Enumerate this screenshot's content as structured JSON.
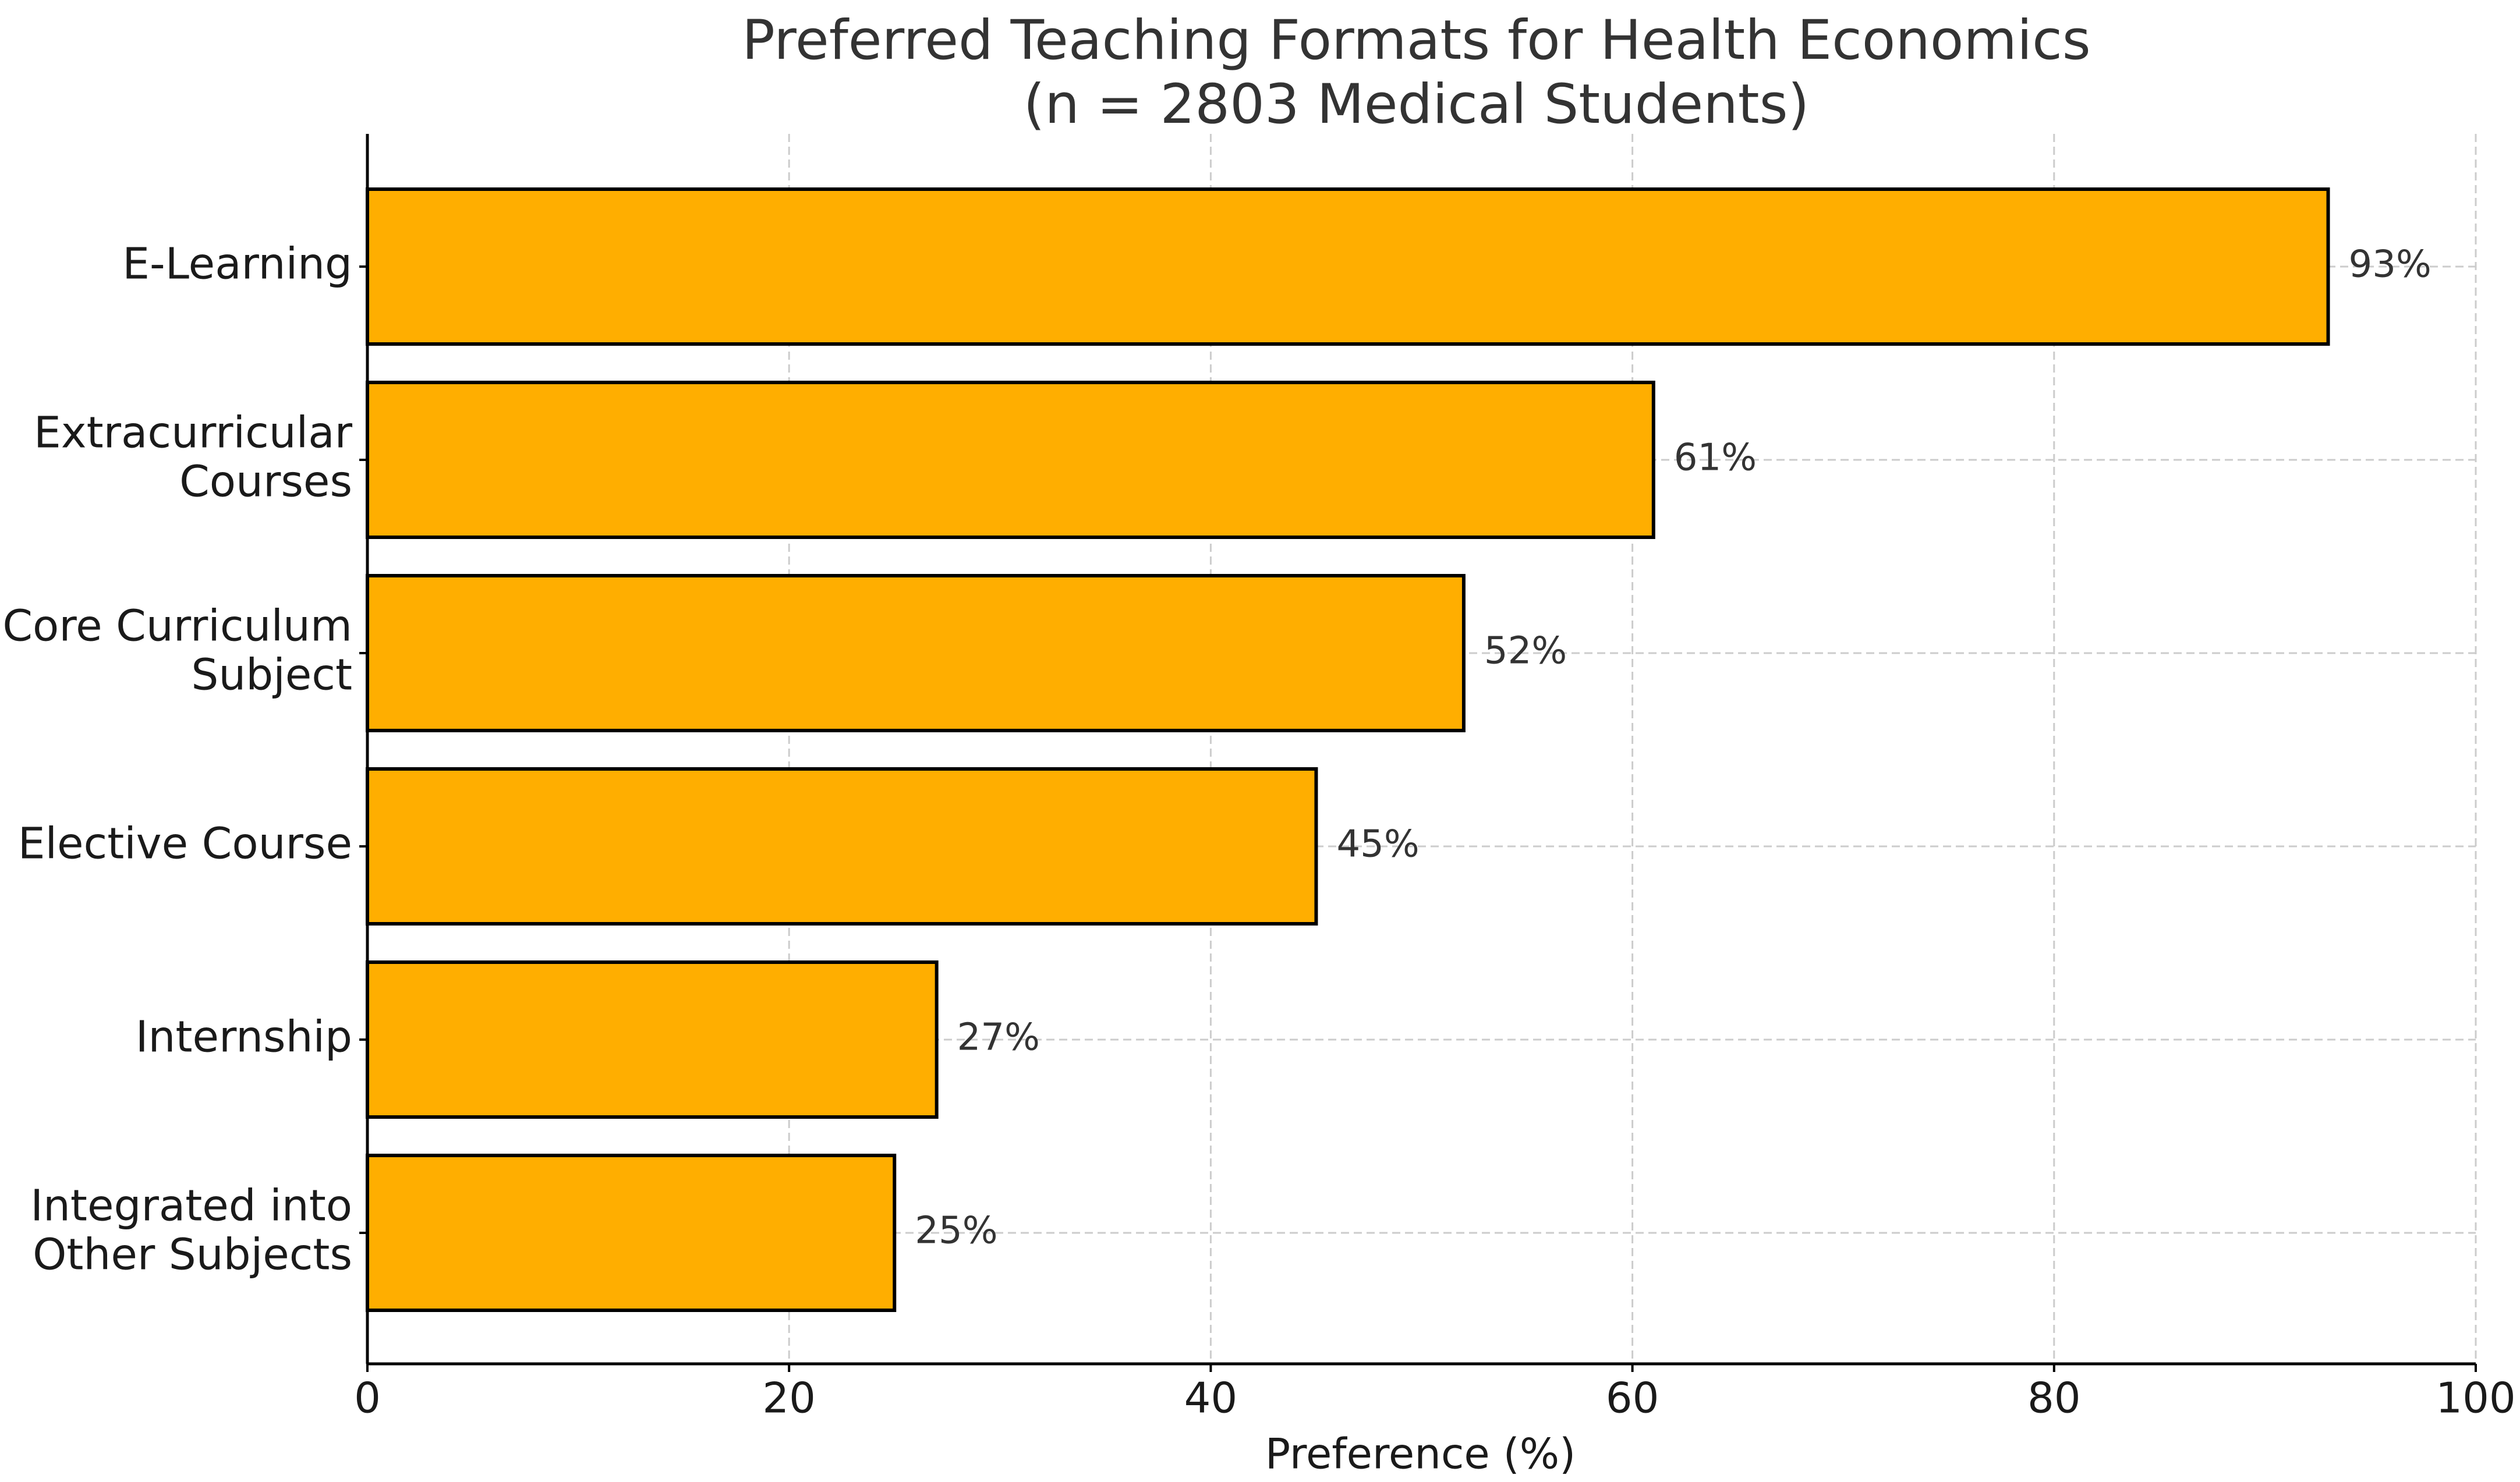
{
  "chart_data": {
    "type": "bar",
    "orientation": "horizontal",
    "title": [
      "Preferred Teaching Formats for Health Economics",
      "(n = 2803 Medical Students)"
    ],
    "xlabel": "Preference (%)",
    "ylabel": "",
    "xlim": [
      0,
      100
    ],
    "xticks": [
      0,
      20,
      40,
      60,
      80,
      100
    ],
    "grid": true,
    "categories": [
      {
        "label": [
          "E-Learning"
        ],
        "value": 93,
        "value_label": "93%"
      },
      {
        "label": [
          "Extracurricular",
          "Courses"
        ],
        "value": 61,
        "value_label": "61%"
      },
      {
        "label": [
          "Core Curriculum",
          "Subject"
        ],
        "value": 52,
        "value_label": "52%"
      },
      {
        "label": [
          "Elective Course"
        ],
        "value": 45,
        "value_label": "45%"
      },
      {
        "label": [
          "Internship"
        ],
        "value": 27,
        "value_label": "27%"
      },
      {
        "label": [
          "Integrated into",
          "Other Subjects"
        ],
        "value": 25,
        "value_label": "25%"
      }
    ],
    "colors": {
      "bar_fill": "#FFAE00",
      "bar_edge": "#000000",
      "grid": "#cccccc",
      "text": "#1a1a1a",
      "title": "#333333"
    }
  }
}
